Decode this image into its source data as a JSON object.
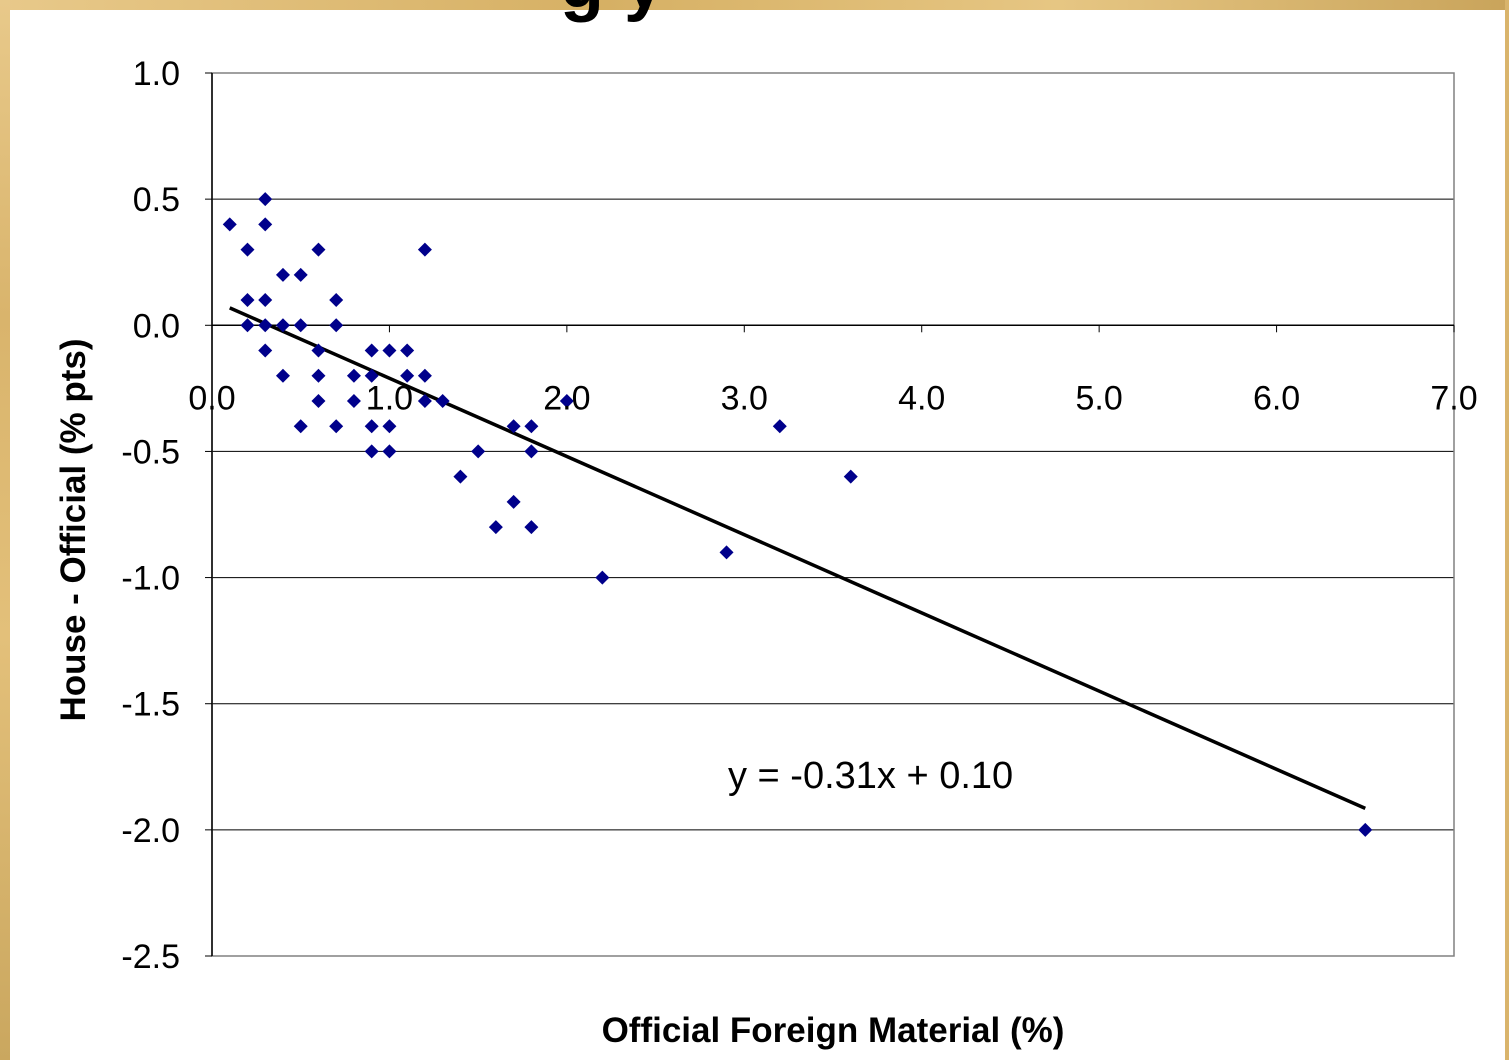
{
  "header": {
    "title_fragment": "g     y"
  },
  "colors": {
    "background": "#ffffff",
    "frame_accent": "#d9b46c",
    "marker": "#00008b",
    "trendline": "#000000",
    "gridline": "#000000"
  },
  "chart_data": {
    "type": "scatter",
    "title": "",
    "xlabel": "Official Foreign Material (%)",
    "ylabel": "House - Official (% pts)",
    "xlim": [
      0.0,
      7.0
    ],
    "ylim": [
      -2.5,
      1.0
    ],
    "x_ticks": [
      0.0,
      1.0,
      2.0,
      3.0,
      4.0,
      5.0,
      6.0,
      7.0
    ],
    "y_ticks": [
      1.0,
      0.5,
      0.0,
      -0.5,
      -1.0,
      -1.5,
      -2.0,
      -2.5
    ],
    "x_tick_labels": [
      "0.0",
      "1.0",
      "2.0",
      "3.0",
      "4.0",
      "5.0",
      "6.0",
      "7.0"
    ],
    "y_tick_labels": [
      "1.0",
      "0.5",
      "0.0",
      "-0.5",
      "-1.0",
      "-1.5",
      "-2.0",
      "-2.5"
    ],
    "grid": "horizontal",
    "legend": "none",
    "marker": "diamond",
    "points": [
      [
        0.1,
        0.4
      ],
      [
        0.2,
        0.3
      ],
      [
        0.2,
        0.1
      ],
      [
        0.2,
        0.0
      ],
      [
        0.3,
        0.5
      ],
      [
        0.3,
        0.4
      ],
      [
        0.3,
        0.1
      ],
      [
        0.3,
        0.0
      ],
      [
        0.3,
        -0.1
      ],
      [
        0.4,
        0.2
      ],
      [
        0.4,
        0.0
      ],
      [
        0.4,
        -0.2
      ],
      [
        0.5,
        0.2
      ],
      [
        0.5,
        0.0
      ],
      [
        0.5,
        -0.4
      ],
      [
        0.6,
        0.3
      ],
      [
        0.6,
        -0.1
      ],
      [
        0.6,
        -0.2
      ],
      [
        0.6,
        -0.3
      ],
      [
        0.7,
        0.1
      ],
      [
        0.7,
        0.0
      ],
      [
        0.7,
        -0.4
      ],
      [
        0.8,
        -0.2
      ],
      [
        0.8,
        -0.3
      ],
      [
        0.9,
        -0.1
      ],
      [
        0.9,
        -0.2
      ],
      [
        0.9,
        -0.4
      ],
      [
        0.9,
        -0.5
      ],
      [
        1.0,
        -0.1
      ],
      [
        1.0,
        -0.4
      ],
      [
        1.0,
        -0.5
      ],
      [
        1.1,
        -0.1
      ],
      [
        1.1,
        -0.2
      ],
      [
        1.2,
        0.3
      ],
      [
        1.2,
        -0.2
      ],
      [
        1.2,
        -0.3
      ],
      [
        1.3,
        -0.3
      ],
      [
        1.4,
        -0.6
      ],
      [
        1.5,
        -0.5
      ],
      [
        1.6,
        -0.8
      ],
      [
        1.7,
        -0.4
      ],
      [
        1.7,
        -0.7
      ],
      [
        1.8,
        -0.4
      ],
      [
        1.8,
        -0.5
      ],
      [
        1.8,
        -0.8
      ],
      [
        2.0,
        -0.3
      ],
      [
        2.2,
        -1.0
      ],
      [
        2.9,
        -0.9
      ],
      [
        3.2,
        -0.4
      ],
      [
        3.6,
        -0.6
      ],
      [
        6.5,
        -2.0
      ]
    ],
    "trendline": {
      "slope": -0.31,
      "intercept": 0.1,
      "x_start": 0.1,
      "x_end": 6.5,
      "equation_label": "y = -0.31x + 0.10"
    }
  }
}
